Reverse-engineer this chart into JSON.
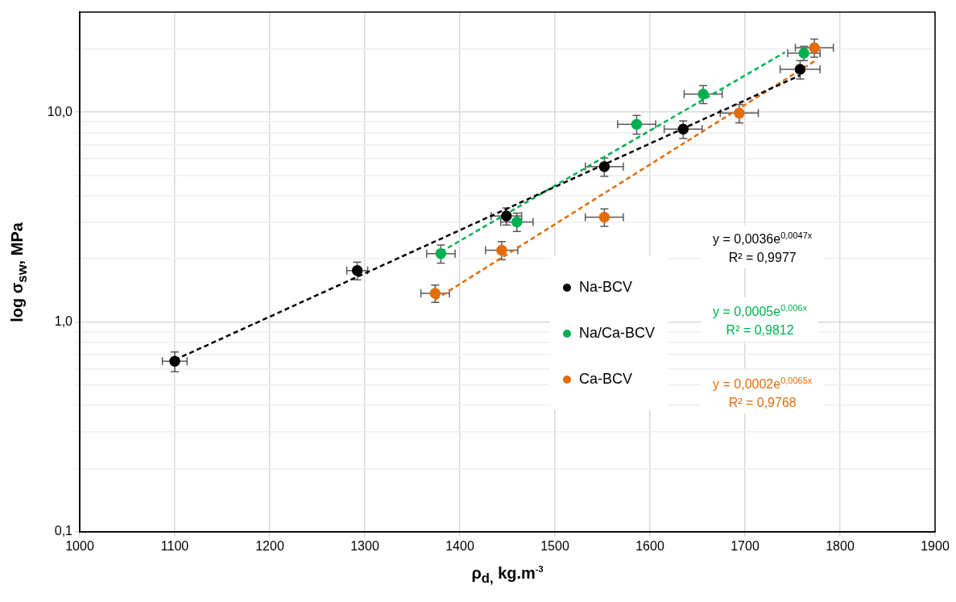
{
  "chart_data": {
    "type": "scatter",
    "xlabel": "ρ$_{d,}$ kg.m$^{-3}$",
    "ylabel": "log σ$_{sw}$, MPa",
    "xlim": [
      1000,
      1900
    ],
    "xticks": [
      1000,
      1100,
      1200,
      1300,
      1400,
      1500,
      1600,
      1700,
      1800,
      1900
    ],
    "ylim": [
      0.1,
      30
    ],
    "log": "y",
    "yticks": [
      {
        "value": 0.1,
        "label": "0,1"
      },
      {
        "value": 0.2,
        "label": null
      },
      {
        "value": 0.3,
        "label": null
      },
      {
        "value": 0.4,
        "label": null
      },
      {
        "value": 0.5,
        "label": null
      },
      {
        "value": 0.6,
        "label": null
      },
      {
        "value": 0.7,
        "label": null
      },
      {
        "value": 0.8,
        "label": null
      },
      {
        "value": 0.9,
        "label": null
      },
      {
        "value": 1,
        "label": "1,0"
      },
      {
        "value": 2,
        "label": null
      },
      {
        "value": 3,
        "label": null
      },
      {
        "value": 4,
        "label": null
      },
      {
        "value": 5,
        "label": null
      },
      {
        "value": 6,
        "label": null
      },
      {
        "value": 7,
        "label": null
      },
      {
        "value": 8,
        "label": null
      },
      {
        "value": 9,
        "label": null
      },
      {
        "value": 10,
        "label": "10,0"
      },
      {
        "value": 20,
        "label": null
      }
    ],
    "grid": true,
    "legend": "center right",
    "marker": "circle",
    "series": [
      {
        "name": "Na-BCV",
        "color": "#000000",
        "x": [
          1100,
          1292,
          1449,
          1552,
          1635,
          1758
        ],
        "values": [
          0.65,
          1.76,
          3.2,
          5.5,
          8.3,
          16.0
        ],
        "errors": [
          0.07,
          0.17,
          0.3,
          0.55,
          0.8,
          1.6
        ],
        "xerrors": [
          13,
          11,
          16,
          20,
          20,
          21
        ]
      },
      {
        "name": "Na/Ca-BCV",
        "color": "#00b050",
        "x": [
          1380,
          1460,
          1586,
          1656,
          1762
        ],
        "values": [
          2.12,
          3.0,
          8.75,
          12.2,
          19.1
        ],
        "errors": [
          0.21,
          0.3,
          0.9,
          1.2,
          1.5
        ],
        "xerrors": [
          15,
          17,
          20,
          20,
          17
        ]
      },
      {
        "name": "Ca-BCV",
        "color": "#e46c0a",
        "x": [
          1374,
          1444,
          1552,
          1694,
          1773
        ],
        "values": [
          1.37,
          2.2,
          3.16,
          9.9,
          20.3
        ],
        "errors": [
          0.13,
          0.22,
          0.3,
          1.0,
          2.0
        ],
        "xerrors": [
          15,
          17,
          20,
          20,
          20
        ]
      },
      {
        "type": "line",
        "color": "#000000",
        "line_style": "dashed",
        "marker": "none",
        "x": [
          1100,
          1758
        ],
        "values": [
          0.66,
          15.0
        ]
      },
      {
        "type": "line",
        "color": "#00b050",
        "line_style": "dashed",
        "marker": "none",
        "x": [
          1380,
          1742
        ],
        "values": [
          2.16,
          19.3
        ]
      },
      {
        "type": "line",
        "color": "#e46c0a",
        "line_style": "dashed",
        "marker": "none",
        "x": [
          1374,
          1773
        ],
        "values": [
          1.28,
          17.5
        ]
      }
    ],
    "annotations": [
      "y = 0,0036e$^{0,0047x}$",
      "R² = 0,9977",
      "y = 0,0005e$^{0,006x}$",
      "R² = 0,9812",
      "y = 0,0002e$^{0,0065x}$",
      "R² = 0,9768"
    ]
  }
}
